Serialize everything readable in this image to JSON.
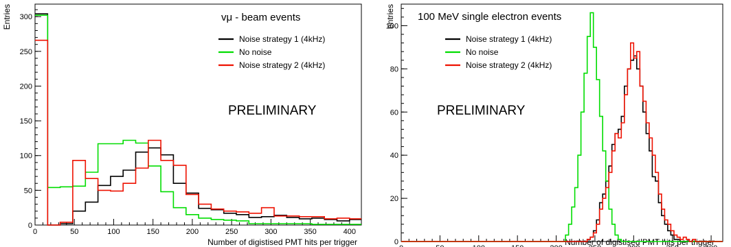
{
  "chart_data": [
    {
      "type": "histogram",
      "title": "vμ - beam events",
      "xlabel": "Number of digistised PMT hits per trigger",
      "ylabel": "Entries",
      "annotation": "PRELIMINARY",
      "xlim": [
        0,
        415
      ],
      "ylim": [
        0,
        318
      ],
      "xticks": [
        0,
        50,
        100,
        150,
        200,
        250,
        300,
        350,
        400
      ],
      "yticks": [
        0,
        50,
        100,
        150,
        200,
        250,
        300
      ],
      "legend_position": "top-right",
      "bin_edges": [
        0,
        16,
        32,
        48,
        64,
        80,
        96,
        112,
        128,
        144,
        160,
        176,
        192,
        208,
        224,
        240,
        256,
        272,
        288,
        304,
        320,
        336,
        352,
        368,
        384,
        400,
        416
      ],
      "series": [
        {
          "name": "Noise strategy 1 (4kHz)",
          "color": "#000000",
          "values": [
            304,
            0,
            2,
            20,
            33,
            57,
            70,
            79,
            105,
            111,
            101,
            60,
            46,
            24,
            22,
            17,
            15,
            11,
            12,
            14,
            11,
            9,
            10,
            8,
            6,
            8
          ]
        },
        {
          "name": "No noise",
          "color": "#00dd00",
          "values": [
            302,
            54,
            55,
            56,
            76,
            117,
            117,
            122,
            118,
            85,
            48,
            25,
            15,
            10,
            8,
            7,
            6,
            2,
            2,
            2,
            2,
            2,
            1,
            1,
            1,
            1
          ]
        },
        {
          "name": "Noise strategy 2 (4kHz)",
          "color": "#ee1100",
          "values": [
            266,
            0,
            4,
            93,
            67,
            50,
            49,
            60,
            82,
            122,
            93,
            86,
            44,
            30,
            23,
            20,
            19,
            17,
            25,
            13,
            13,
            12,
            12,
            9,
            10,
            9
          ]
        }
      ]
    },
    {
      "type": "histogram",
      "title": "100 MeV single electron events",
      "xlabel": "Number of digistised PMT hits per trigger",
      "ylabel": "entries",
      "annotation": "PRELIMINARY",
      "xlim": [
        0,
        415
      ],
      "ylim": [
        0,
        110
      ],
      "xticks": [
        0,
        50,
        100,
        150,
        200,
        250,
        300,
        350,
        400
      ],
      "yticks": [
        0,
        20,
        40,
        60,
        80,
        100
      ],
      "legend_position": "top-left",
      "bin_start": 0,
      "bin_width": 4,
      "series": [
        {
          "name": "Noise strategy 1 (4kHz)",
          "color": "#000000",
          "values": [
            0,
            0,
            0,
            0,
            0,
            0,
            0,
            0,
            0,
            0,
            0,
            0,
            0,
            0,
            0,
            0,
            0,
            0,
            0,
            0,
            0,
            0,
            0,
            0,
            0,
            0,
            0,
            0,
            0,
            0,
            0,
            0,
            0,
            0,
            0,
            0,
            0,
            0,
            0,
            0,
            0,
            0,
            0,
            0,
            0,
            0,
            0,
            0,
            0,
            0,
            0,
            0,
            0,
            0,
            0,
            0,
            0,
            0,
            0,
            0,
            1,
            2,
            5,
            10,
            18,
            22,
            28,
            35,
            45,
            50,
            52,
            58,
            72,
            80,
            84,
            86,
            80,
            72,
            60,
            50,
            42,
            30,
            28,
            18,
            12,
            8,
            5,
            3,
            1,
            1,
            0,
            0,
            0,
            0,
            0,
            0,
            0,
            0,
            0,
            0,
            0,
            0,
            0,
            0
          ]
        },
        {
          "name": "No noise",
          "color": "#00dd00",
          "values": [
            0,
            0,
            0,
            0,
            0,
            0,
            0,
            0,
            0,
            0,
            0,
            0,
            0,
            0,
            0,
            0,
            0,
            0,
            0,
            0,
            0,
            0,
            0,
            0,
            0,
            0,
            0,
            0,
            0,
            0,
            0,
            0,
            0,
            0,
            0,
            0,
            0,
            0,
            0,
            0,
            0,
            0,
            0,
            0,
            0,
            0,
            0,
            0,
            0,
            0,
            0,
            0,
            0,
            3,
            8,
            16,
            25,
            40,
            60,
            78,
            95,
            106,
            90,
            75,
            58,
            42,
            28,
            15,
            8,
            3,
            1,
            0,
            0,
            0,
            0,
            0,
            0,
            0,
            0,
            0,
            0,
            0,
            0,
            0,
            0,
            0,
            0,
            0,
            0,
            0,
            0,
            0,
            0,
            0,
            0,
            0,
            0,
            0,
            0,
            0,
            0,
            0,
            0,
            0
          ]
        },
        {
          "name": "Noise strategy 2 (4kHz)",
          "color": "#ee1100",
          "values": [
            0,
            0,
            0,
            0,
            0,
            0,
            0,
            0,
            0,
            0,
            0,
            0,
            0,
            0,
            0,
            0,
            0,
            0,
            0,
            0,
            0,
            0,
            0,
            0,
            0,
            0,
            0,
            0,
            0,
            0,
            0,
            0,
            0,
            0,
            0,
            0,
            0,
            0,
            0,
            0,
            0,
            0,
            0,
            0,
            0,
            0,
            0,
            0,
            0,
            0,
            0,
            0,
            0,
            0,
            0,
            0,
            0,
            0,
            0,
            0,
            1,
            2,
            4,
            8,
            15,
            20,
            25,
            32,
            42,
            50,
            48,
            55,
            68,
            80,
            92,
            85,
            88,
            72,
            65,
            55,
            48,
            40,
            32,
            22,
            15,
            10,
            8,
            5,
            3,
            2,
            1,
            2,
            1,
            0,
            1,
            0,
            0,
            0,
            0,
            0,
            0,
            0,
            0,
            0
          ]
        }
      ]
    }
  ]
}
